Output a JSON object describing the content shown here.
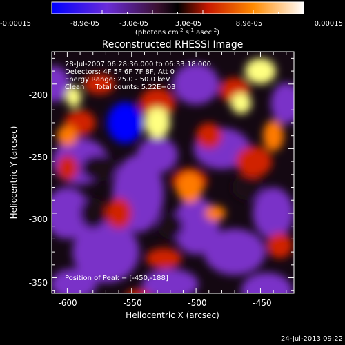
{
  "colorbar": {
    "tick_labels": [
      "-0.00015",
      "-8.9e-05",
      "-3.0e-05",
      "3.0e-05",
      "8.9e-05",
      "0.00015"
    ],
    "label_main": "(photons cm",
    "label_exp1": "-2",
    "label_mid": " s",
    "label_exp2": "-1",
    "label_end": " asec",
    "label_exp3": "-2",
    "label_close": ")",
    "range": [
      -0.00015,
      0.00015
    ]
  },
  "chart_data": {
    "type": "heatmap",
    "title": "Reconstructed RHESSI Image",
    "xlabel": "Heliocentric X (arcsec)",
    "ylabel": "Heliocentric Y (arcsec)",
    "xlim": [
      -612,
      -424
    ],
    "ylim": [
      -362,
      -175
    ],
    "x_ticks": [
      -600,
      -550,
      -500,
      -450
    ],
    "y_ticks": [
      -200,
      -250,
      -300,
      -350
    ],
    "colormap": [
      "#0000ff",
      "#7a30c8",
      "#1a0a12",
      "#d02000",
      "#ff7a00",
      "#ffff80"
    ],
    "annotations": [
      "28-Jul-2007 06:28:36.000 to 06:33:18.000",
      "Detectors: 4F 5F 6F 7F 8F, Att 0",
      "Energy Range: 25.0 - 50.0 keV",
      "Clean     Total counts: 5.22E+03"
    ],
    "peak_label": "Position of Peak = [-450,-188]"
  },
  "timestamp": "24-Jul-2013 09:22"
}
